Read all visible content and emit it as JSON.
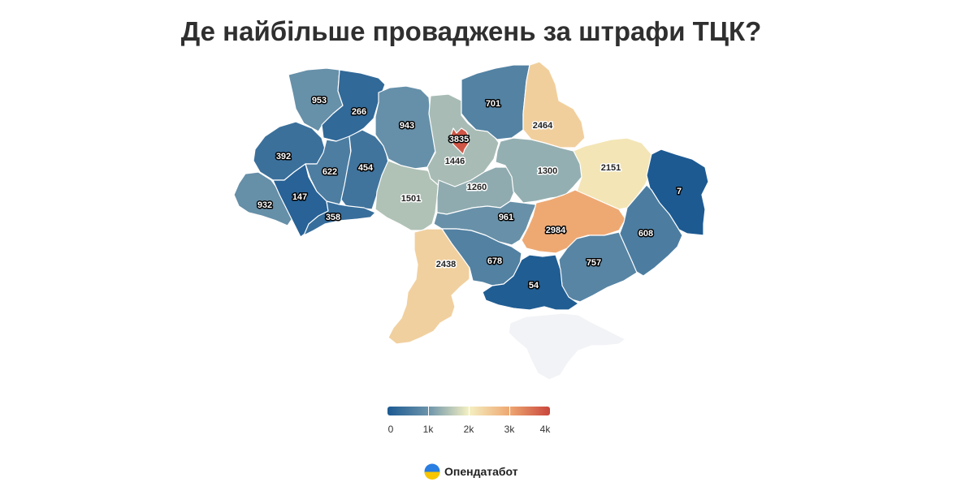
{
  "title": "Де найбільше проваджень за штрафи ТЦК?",
  "colors": {
    "scale": [
      "#1c5a92",
      "#6b93aa",
      "#f4f0c2",
      "#eea872",
      "#c9463d"
    ],
    "no_data": "#f2f3f6",
    "logo_blue": "#2a7de1",
    "logo_yellow": "#f7c600"
  },
  "legend": {
    "labels": [
      "0",
      "1k",
      "2k",
      "3k",
      "4k"
    ],
    "min": 0,
    "max": 4000
  },
  "logo": {
    "icon": "opendatabot-logo-icon",
    "text": "Опендатабот"
  },
  "chart_data": {
    "type": "choropleth",
    "title": "Де найбільше проваджень за штрафи ТЦК?",
    "value_range": [
      0,
      4000
    ],
    "legend_placement": "bottom-center",
    "regions": [
      {
        "id": "volyn",
        "value": 953
      },
      {
        "id": "rivne",
        "value": 266
      },
      {
        "id": "zhytomyr",
        "value": 943
      },
      {
        "id": "kyiv-oblast",
        "value": 1446
      },
      {
        "id": "kyiv-city",
        "value": 3835
      },
      {
        "id": "chernihiv",
        "value": 701
      },
      {
        "id": "sumy",
        "value": 2464
      },
      {
        "id": "lviv",
        "value": 392
      },
      {
        "id": "ternopil",
        "value": 622
      },
      {
        "id": "khmelnytskyi",
        "value": 454
      },
      {
        "id": "vinnytsia",
        "value": 1501
      },
      {
        "id": "cherkasy",
        "value": 1260
      },
      {
        "id": "poltava",
        "value": 1300
      },
      {
        "id": "kharkiv",
        "value": 2151
      },
      {
        "id": "luhansk",
        "value": 7
      },
      {
        "id": "zakarpattia",
        "value": 932
      },
      {
        "id": "ivano-frankivsk",
        "value": 147
      },
      {
        "id": "chernivtsi",
        "value": 358
      },
      {
        "id": "kirovohrad",
        "value": 961
      },
      {
        "id": "dnipropetrovsk",
        "value": 2984
      },
      {
        "id": "donetsk",
        "value": 608
      },
      {
        "id": "odesa",
        "value": 2438
      },
      {
        "id": "mykolaiv",
        "value": 678
      },
      {
        "id": "zaporizhzhia",
        "value": 757
      },
      {
        "id": "kherson",
        "value": 54
      },
      {
        "id": "crimea",
        "value": null
      }
    ]
  }
}
